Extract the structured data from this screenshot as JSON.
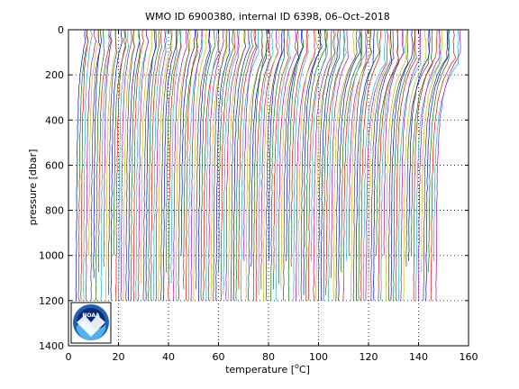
{
  "chart_data": {
    "type": "line",
    "title": "WMO ID 6900380, internal ID 6398, 06–Oct–2018",
    "xlabel_prefix": "temperature [",
    "xlabel_sup": "o",
    "xlabel_suffix": "C]",
    "ylabel": "pressure [dbar]",
    "xlim": [
      0,
      160
    ],
    "ylim": [
      0,
      1400
    ],
    "y_reversed": true,
    "grid": true,
    "grid_style": "dotted",
    "legend": "none",
    "x_ticks": [
      "0",
      "20",
      "40",
      "60",
      "80",
      "100",
      "120",
      "140",
      "160"
    ],
    "y_ticks": [
      "0",
      "200",
      "400",
      "600",
      "800",
      "1000",
      "1200",
      "1400"
    ],
    "series_colors": [
      "#0000ff",
      "#008000",
      "#ff0000",
      "#00bfbf",
      "#bf00bf",
      "#bfbf00",
      "#404040"
    ],
    "profile_offsets": {
      "start": 3,
      "end": 147,
      "count": 145
    },
    "profile_depth_range": [
      0,
      1200
    ],
    "logo_text": "NOAA"
  }
}
